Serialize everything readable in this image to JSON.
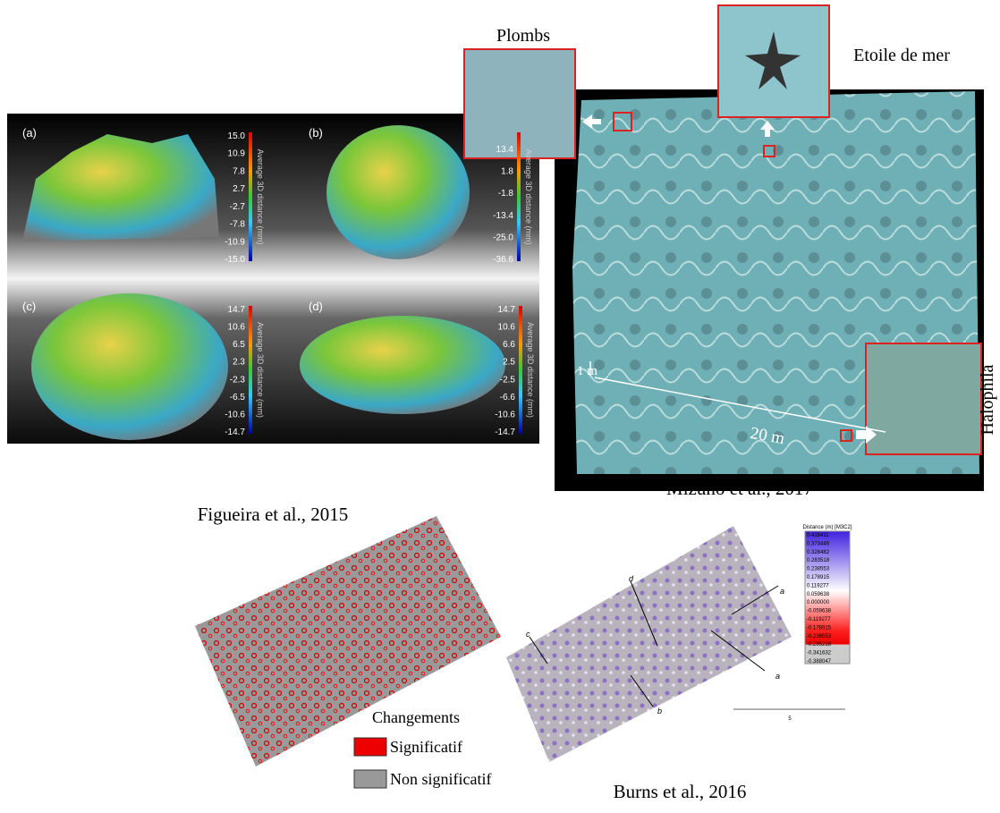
{
  "figueira": {
    "caption": "Figueira et al., 2015",
    "panels": [
      {
        "label": "(a)",
        "axis_title": "Average 3D distance (mm)",
        "scale": [
          "15.0",
          "10.9",
          "7.8",
          "2.7",
          "-2.7",
          "-7.8",
          "-10.9",
          "-15.0"
        ]
      },
      {
        "label": "(b)",
        "axis_title": "Average 3D distance (mm)",
        "scale": [
          "13.4",
          "1.8",
          "-1.8",
          "-13.4",
          "-25.0",
          "-36.6"
        ]
      },
      {
        "label": "(c)",
        "axis_title": "Average 3D distance (mm)",
        "scale": [
          "14.7",
          "10.6",
          "6.5",
          "2.3",
          "-2.3",
          "-6.5",
          "-10.6",
          "-14.7"
        ]
      },
      {
        "label": "(d)",
        "axis_title": "Average 3D distance (mm)",
        "scale": [
          "14.7",
          "10.6",
          "6.6",
          "2.5",
          "-2.5",
          "-6.6",
          "-10.6",
          "-14.7"
        ]
      }
    ]
  },
  "mizuno": {
    "caption": "Mizuno et al., 2017",
    "insets": [
      "Plombs",
      "Etoile de mer",
      "Halophila"
    ],
    "scale_small": "1 m",
    "scale_large": "20 m"
  },
  "burns": {
    "caption": "Burns et al., 2016",
    "legend": {
      "title": "Changements",
      "items": [
        "Significatif",
        "Non significatif"
      ]
    },
    "colorbar": {
      "title": "Distance (m) [M3C2]",
      "scale": [
        "0.418411",
        "0.373446",
        "0.328482",
        "0.283518",
        "0.238553",
        "0.178915",
        "0.119277",
        "0.059638",
        "0.000000",
        "-0.059638",
        "-0.119277",
        "-0.178915",
        "-0.238553",
        "-0.295218",
        "-0.341632",
        "-0.388047"
      ],
      "scale_bar": "5"
    },
    "annotations": [
      "a",
      "d",
      "c",
      "a",
      "b"
    ]
  }
}
